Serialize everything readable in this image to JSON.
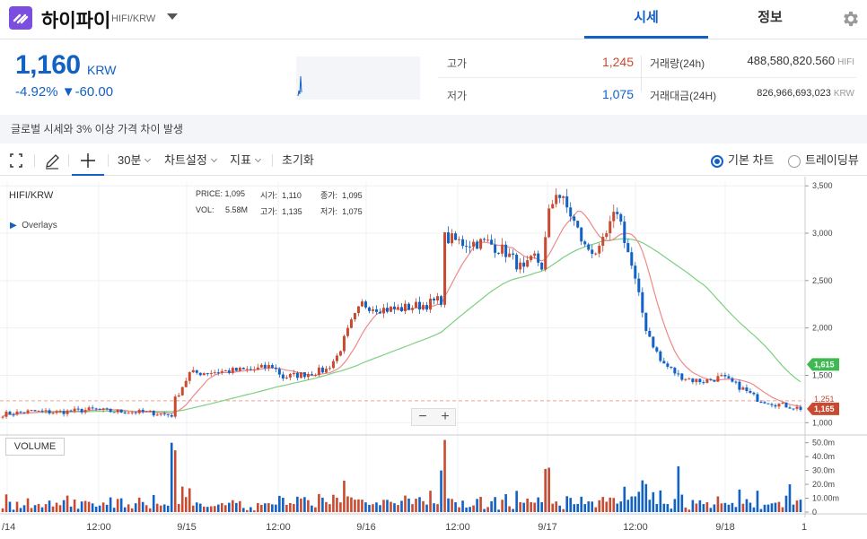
{
  "header": {
    "coin_name": "하이파이",
    "pair": "HIFI/KRW",
    "tabs": [
      "시세",
      "정보"
    ],
    "active_tab": 0
  },
  "price": {
    "value": "1,160",
    "currency": "KRW",
    "change_pct": "-4.92%",
    "change_arrow": "▼",
    "change_abs": "-60.00"
  },
  "stats": {
    "high_label": "고가",
    "high_value": "1,245",
    "low_label": "저가",
    "low_value": "1,075",
    "volume_label": "거래량(24h)",
    "volume_value": "488,580,820.560",
    "volume_unit": "HIFI",
    "amount_label": "거래대금(24H)",
    "amount_value": "826,966,693,023",
    "amount_unit": "KRW"
  },
  "notice": "글로벌 시세와 3% 이상 가격 차이 발생",
  "toolbar": {
    "interval": "30분",
    "chart_settings": "차트설정",
    "indicators": "지표",
    "reset": "초기화",
    "basic_chart": "기본 차트",
    "tradingview": "트레이딩뷰"
  },
  "chart_panel": {
    "symbol": "HIFI/KRW",
    "overlays": "Overlays",
    "volume_label": "VOLUME",
    "info": {
      "price_label": "PRICE:",
      "price": "1,095",
      "open_label": "시가:",
      "open": "1,110",
      "close_label": "종가:",
      "close": "1,095",
      "vol_label": "VOL:",
      "vol": "5.58M",
      "high_label": "고가:",
      "high": "1,135",
      "low_label": "저가:",
      "low": "1,075"
    },
    "last_price_tag": "1,165",
    "ma_long_tag": "1,615",
    "ma_short_tag": "1,251",
    "zoom_out": "−",
    "zoom_in": "+"
  },
  "chart_data": {
    "type": "candlestick",
    "x_tick_labels": [
      "/14",
      "12:00",
      "9/15",
      "12:00",
      "9/16",
      "12:00",
      "9/17",
      "12:00",
      "9/18",
      "1"
    ],
    "y_tick_labels": [
      "3,500",
      "3,000",
      "2,500",
      "2,000",
      "1,500",
      "1,000"
    ],
    "y_ticks": [
      3500,
      3000,
      2500,
      2000,
      1500,
      1000
    ],
    "ylim": [
      880,
      3540
    ],
    "volume_tick_labels": [
      "50.0m",
      "40.0m",
      "30.0m",
      "20.0m",
      "10.00m",
      "0"
    ],
    "volume_ticks": [
      50,
      40,
      30,
      20,
      10,
      0
    ],
    "volume_ylim": [
      0,
      53
    ],
    "price_anchors": [
      [
        0,
        1090
      ],
      [
        8,
        1120
      ],
      [
        15,
        1110
      ],
      [
        25,
        1140
      ],
      [
        30,
        1120
      ],
      [
        40,
        1110
      ],
      [
        47,
        1080
      ],
      [
        48,
        1250
      ],
      [
        52,
        1520
      ],
      [
        60,
        1540
      ],
      [
        70,
        1560
      ],
      [
        75,
        1600
      ],
      [
        78,
        1480
      ],
      [
        85,
        1520
      ],
      [
        90,
        1560
      ],
      [
        93,
        1700
      ],
      [
        97,
        2050
      ],
      [
        100,
        2250
      ],
      [
        106,
        2200
      ],
      [
        110,
        2200
      ],
      [
        118,
        2250
      ],
      [
        122,
        2300
      ],
      [
        123,
        2950
      ],
      [
        128,
        2900
      ],
      [
        135,
        2900
      ],
      [
        140,
        2800
      ],
      [
        145,
        2600
      ],
      [
        148,
        2750
      ],
      [
        150,
        2650
      ],
      [
        152,
        3200
      ],
      [
        154,
        3450
      ],
      [
        158,
        3200
      ],
      [
        162,
        2850
      ],
      [
        166,
        2800
      ],
      [
        171,
        3250
      ],
      [
        175,
        2650
      ],
      [
        179,
        2000
      ],
      [
        183,
        1650
      ],
      [
        188,
        1500
      ],
      [
        192,
        1450
      ],
      [
        195,
        1440
      ],
      [
        200,
        1480
      ],
      [
        205,
        1380
      ],
      [
        210,
        1250
      ],
      [
        215,
        1200
      ],
      [
        222,
        1150
      ]
    ],
    "candle_count": 223,
    "ma_short_color": "#ee8a88",
    "ma_long_color": "#7dd080",
    "up_color": "#c84a31",
    "down_color": "#1261c4",
    "last_price_value": 1165,
    "ma_long_value": 1615,
    "ma_short_value": 1251
  }
}
